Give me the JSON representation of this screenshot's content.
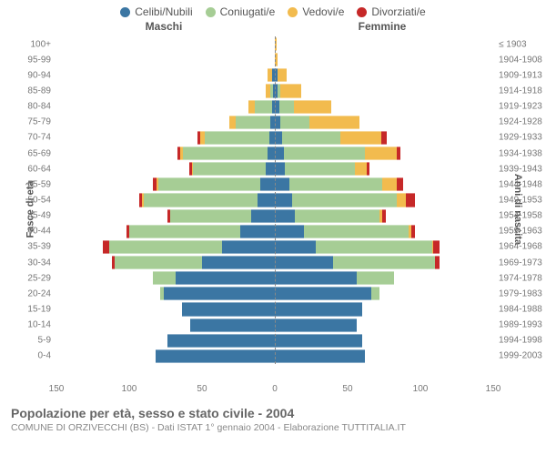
{
  "type": "population-pyramid",
  "legend": [
    {
      "label": "Celibi/Nubili",
      "color": "#3b76a3"
    },
    {
      "label": "Coniugati/e",
      "color": "#a6cd95"
    },
    {
      "label": "Vedovi/e",
      "color": "#f2bb4e"
    },
    {
      "label": "Divorziati/e",
      "color": "#c62828"
    }
  ],
  "header_male": "Maschi",
  "header_female": "Femmine",
  "ylabel_left": "Fasce di età",
  "ylabel_right": "Anni di nascita",
  "xmax": 150,
  "xticks_male": [
    150,
    100,
    50,
    0
  ],
  "xticks_female": [
    0,
    50,
    100,
    150
  ],
  "background_color": "#ffffff",
  "grid_color": "#dddddd",
  "center_line_color": "#888888",
  "title": "Popolazione per età, sesso e stato civile - 2004",
  "subtitle": "COMUNE DI ORZIVECCHI (BS) - Dati ISTAT 1° gennaio 2004 - Elaborazione TUTTITALIA.IT",
  "rows": [
    {
      "age": "100+",
      "year": "≤ 1903",
      "m": [
        0,
        0,
        0,
        0
      ],
      "f": [
        0,
        0,
        1,
        0
      ]
    },
    {
      "age": "95-99",
      "year": "1904-1908",
      "m": [
        0,
        0,
        0,
        0
      ],
      "f": [
        0,
        0,
        2,
        0
      ]
    },
    {
      "age": "90-94",
      "year": "1909-1913",
      "m": [
        2,
        0,
        3,
        0
      ],
      "f": [
        2,
        0,
        6,
        0
      ]
    },
    {
      "age": "85-89",
      "year": "1914-1918",
      "m": [
        1,
        2,
        3,
        0
      ],
      "f": [
        2,
        2,
        14,
        0
      ]
    },
    {
      "age": "80-84",
      "year": "1919-1923",
      "m": [
        2,
        12,
        4,
        0
      ],
      "f": [
        3,
        10,
        26,
        0
      ]
    },
    {
      "age": "75-79",
      "year": "1924-1928",
      "m": [
        3,
        24,
        4,
        0
      ],
      "f": [
        4,
        20,
        34,
        0
      ]
    },
    {
      "age": "70-74",
      "year": "1929-1933",
      "m": [
        4,
        44,
        3,
        2
      ],
      "f": [
        5,
        40,
        28,
        4
      ]
    },
    {
      "age": "65-69",
      "year": "1934-1938",
      "m": [
        5,
        58,
        2,
        2
      ],
      "f": [
        6,
        56,
        22,
        2
      ]
    },
    {
      "age": "60-64",
      "year": "1939-1943",
      "m": [
        6,
        50,
        1,
        2
      ],
      "f": [
        7,
        48,
        8,
        2
      ]
    },
    {
      "age": "55-59",
      "year": "1944-1948",
      "m": [
        10,
        70,
        1,
        3
      ],
      "f": [
        10,
        64,
        10,
        4
      ]
    },
    {
      "age": "50-54",
      "year": "1949-1953",
      "m": [
        12,
        78,
        1,
        2
      ],
      "f": [
        12,
        72,
        6,
        6
      ]
    },
    {
      "age": "45-49",
      "year": "1954-1958",
      "m": [
        16,
        56,
        0,
        2
      ],
      "f": [
        14,
        58,
        2,
        2
      ]
    },
    {
      "age": "40-44",
      "year": "1959-1963",
      "m": [
        24,
        76,
        0,
        2
      ],
      "f": [
        20,
        72,
        2,
        2
      ]
    },
    {
      "age": "35-39",
      "year": "1964-1968",
      "m": [
        36,
        78,
        0,
        4
      ],
      "f": [
        28,
        80,
        1,
        4
      ]
    },
    {
      "age": "30-34",
      "year": "1969-1973",
      "m": [
        50,
        60,
        0,
        2
      ],
      "f": [
        40,
        70,
        0,
        3
      ]
    },
    {
      "age": "25-29",
      "year": "1974-1978",
      "m": [
        68,
        16,
        0,
        0
      ],
      "f": [
        56,
        26,
        0,
        0
      ]
    },
    {
      "age": "20-24",
      "year": "1979-1983",
      "m": [
        76,
        3,
        0,
        0
      ],
      "f": [
        66,
        6,
        0,
        0
      ]
    },
    {
      "age": "15-19",
      "year": "1984-1988",
      "m": [
        64,
        0,
        0,
        0
      ],
      "f": [
        60,
        0,
        0,
        0
      ]
    },
    {
      "age": "10-14",
      "year": "1989-1993",
      "m": [
        58,
        0,
        0,
        0
      ],
      "f": [
        56,
        0,
        0,
        0
      ]
    },
    {
      "age": "5-9",
      "year": "1994-1998",
      "m": [
        74,
        0,
        0,
        0
      ],
      "f": [
        60,
        0,
        0,
        0
      ]
    },
    {
      "age": "0-4",
      "year": "1999-2003",
      "m": [
        82,
        0,
        0,
        0
      ],
      "f": [
        62,
        0,
        0,
        0
      ]
    }
  ]
}
